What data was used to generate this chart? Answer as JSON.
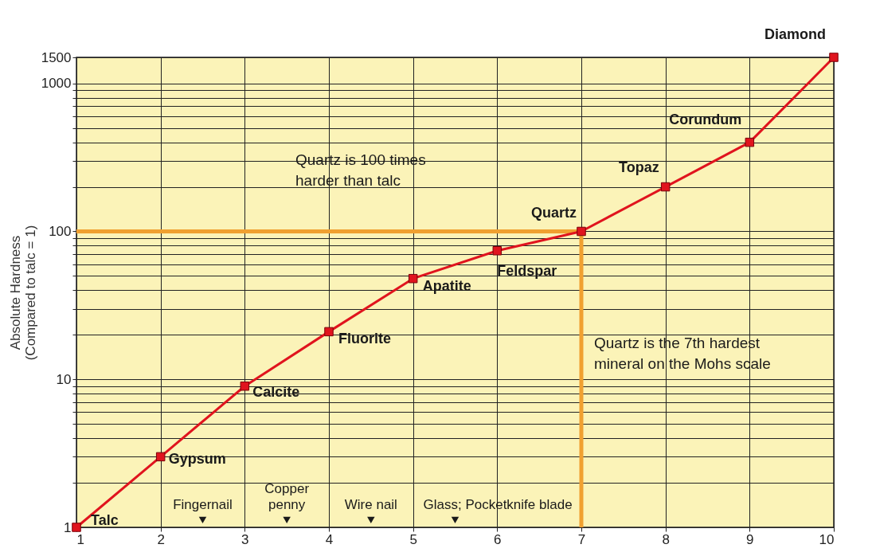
{
  "chart_data": {
    "type": "line",
    "ylabel": "Absolute Hardness (Compared to talc = 1)",
    "x": [
      1,
      2,
      3,
      4,
      5,
      6,
      7,
      8,
      9,
      10
    ],
    "series": [
      {
        "color": "#e0141e",
        "marker": "square",
        "values": [
          1,
          3,
          9,
          21,
          48,
          74,
          100,
          200,
          400,
          1500
        ]
      },
      {
        "type": "scatter",
        "color": "#1a1a1a",
        "marker": "triangle",
        "x": [
          2.5,
          3.5,
          4.5,
          5.5
        ],
        "values": [
          1.12,
          1.12,
          1.12,
          1.12
        ]
      }
    ],
    "log": "y",
    "xlim": [
      1,
      10
    ],
    "xticks": [
      1,
      2,
      3,
      4,
      5,
      6,
      7,
      8,
      9,
      10
    ],
    "ylim": [
      1,
      1500
    ],
    "yticks": [
      1,
      {
        "value": 2,
        "label": null
      },
      {
        "value": 3,
        "label": null
      },
      {
        "value": 4,
        "label": null
      },
      {
        "value": 5,
        "label": null
      },
      {
        "value": 6,
        "label": null
      },
      {
        "value": 7,
        "label": null
      },
      {
        "value": 8,
        "label": null
      },
      {
        "value": 9,
        "label": null
      },
      10,
      {
        "value": 20,
        "label": null
      },
      {
        "value": 30,
        "label": null
      },
      {
        "value": 40,
        "label": null
      },
      {
        "value": 50,
        "label": null
      },
      {
        "value": 60,
        "label": null
      },
      {
        "value": 70,
        "label": null
      },
      {
        "value": 80,
        "label": null
      },
      {
        "value": 90,
        "label": null
      },
      100,
      {
        "value": 200,
        "label": null
      },
      {
        "value": 300,
        "label": null
      },
      {
        "value": 400,
        "label": null
      },
      {
        "value": 500,
        "label": null
      },
      {
        "value": 600,
        "label": null
      },
      {
        "value": 700,
        "label": null
      },
      {
        "value": 800,
        "label": null
      },
      {
        "value": 900,
        "label": null
      },
      1000,
      1500
    ],
    "grid": true,
    "ref_lines": [
      {
        "axis": "y",
        "value": 100,
        "color": "#f0a030"
      },
      {
        "axis": "x",
        "value": 7,
        "color": "#f0a030"
      }
    ],
    "annotations": [
      {
        "text": "Talc",
        "x": 1,
        "y": 1
      },
      {
        "text": "Gypsum",
        "x": 2,
        "y": 3
      },
      {
        "text": "Calcite",
        "x": 3,
        "y": 9
      },
      {
        "text": "Fluorite",
        "x": 4,
        "y": 21
      },
      {
        "text": "Apatite",
        "x": 5,
        "y": 48
      },
      {
        "text": "Feldspar",
        "x": 6,
        "y": 74
      },
      {
        "text": "Quartz",
        "x": 7,
        "y": 100
      },
      {
        "text": "Topaz",
        "x": 8,
        "y": 200
      },
      {
        "text": "Corundum",
        "x": 9,
        "y": 400
      },
      {
        "text": "Diamond",
        "x": 10,
        "y": 1500
      },
      {
        "text": "Fingernail",
        "x": 2.5,
        "y": 1.12
      },
      {
        "text": "Copper penny",
        "x": 3.5,
        "y": 1.12
      },
      {
        "text": "Wire nail",
        "x": 4.5,
        "y": 1.12
      },
      {
        "text": "Glass; Pocketknife blade",
        "x": 5.5,
        "y": 1.12
      },
      "Quartz is 100 times harder than talc",
      "Quartz is the 7th hardest mineral on the Mohs scale"
    ]
  }
}
